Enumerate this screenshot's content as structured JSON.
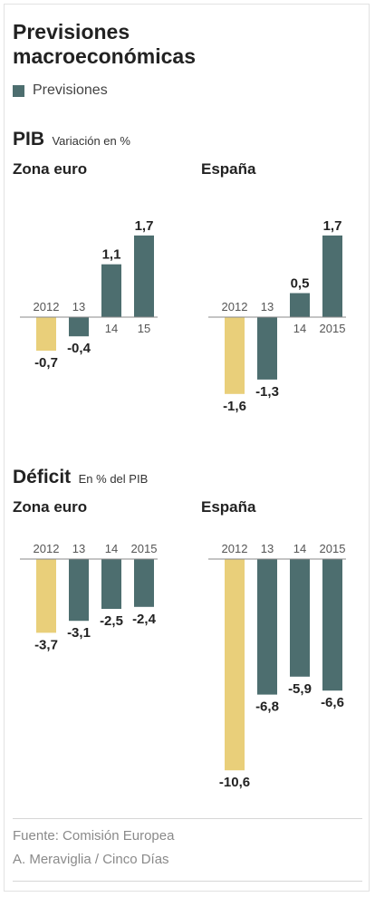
{
  "title_line1": "Previsiones",
  "title_line2": "macroeconómicas",
  "legend": {
    "label": "Previsiones",
    "color": "#4d6e6f"
  },
  "colors": {
    "actual": "#e9cf7a",
    "forecast": "#4d6e6f",
    "axis": "#888888"
  },
  "sections": {
    "pib": {
      "title": "PIB",
      "subtitle": "Variación en %"
    },
    "deficit": {
      "title": "Déficit",
      "subtitle": "En % del PIB"
    }
  },
  "chart_data": [
    {
      "id": "pib-zona-euro",
      "type": "bar",
      "title": "Zona euro",
      "categories": [
        "2012",
        "13",
        "14",
        "15"
      ],
      "values": [
        -0.7,
        -0.4,
        1.1,
        1.7
      ],
      "labels": [
        "-0,7",
        "-0,4",
        "1,1",
        "1,7"
      ],
      "forecast": [
        false,
        true,
        true,
        true
      ],
      "ylim": [
        -1.6,
        1.7
      ]
    },
    {
      "id": "pib-espana",
      "type": "bar",
      "title": "España",
      "categories": [
        "2012",
        "13",
        "14",
        "2015"
      ],
      "values": [
        -1.6,
        -1.3,
        0.5,
        1.7
      ],
      "labels": [
        "-1,6",
        "-1,3",
        "0,5",
        "1,7"
      ],
      "forecast": [
        false,
        true,
        true,
        true
      ],
      "ylim": [
        -1.6,
        1.7
      ]
    },
    {
      "id": "deficit-zona-euro",
      "type": "bar",
      "title": "Zona euro",
      "categories": [
        "2012",
        "13",
        "14",
        "2015"
      ],
      "values": [
        -3.7,
        -3.1,
        -2.5,
        -2.4
      ],
      "labels": [
        "-3,7",
        "-3,1",
        "-2,5",
        "-2,4"
      ],
      "forecast": [
        false,
        true,
        true,
        true
      ],
      "ylim": [
        -10.6,
        0
      ]
    },
    {
      "id": "deficit-espana",
      "type": "bar",
      "title": "España",
      "categories": [
        "2012",
        "13",
        "14",
        "2015"
      ],
      "values": [
        -10.6,
        -6.8,
        -5.9,
        -6.6
      ],
      "labels": [
        "-10,6",
        "-6,8",
        "-5,9",
        "-6,6"
      ],
      "forecast": [
        false,
        true,
        true,
        true
      ],
      "ylim": [
        -10.6,
        0
      ]
    }
  ],
  "footer": {
    "source": "Fuente: Comisión Europea",
    "credit": "A. Meraviglia / Cinco Días"
  }
}
